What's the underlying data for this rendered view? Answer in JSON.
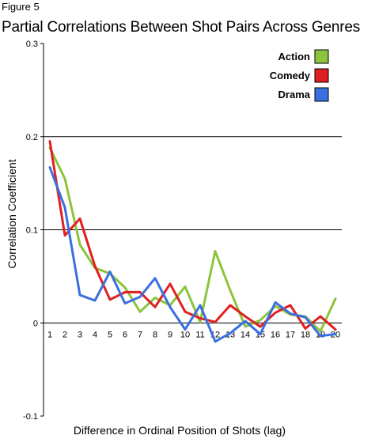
{
  "figure_label": "Figure 5",
  "chart_data": {
    "type": "line",
    "title": "Partial Correlations Between Shot Pairs Across Genres",
    "xlabel": "Difference in Ordinal Position of Shots (lag)",
    "ylabel": "Correlation Coefficient",
    "ylim": [
      -0.1,
      0.3
    ],
    "yticks": [
      "0.3",
      "0.2",
      "0.1",
      "0",
      "-0.1"
    ],
    "ytick_values": [
      0.3,
      0.2,
      0.1,
      0,
      -0.1
    ],
    "gridlines_y": [
      0.2,
      0.1
    ],
    "x": [
      1,
      2,
      3,
      4,
      5,
      6,
      7,
      8,
      9,
      10,
      11,
      12,
      13,
      14,
      15,
      16,
      17,
      18,
      19,
      20
    ],
    "legend_position": "top-right",
    "series": [
      {
        "name": "Action",
        "color": "#8cc43c",
        "values": [
          0.188,
          0.155,
          0.084,
          0.059,
          0.053,
          0.038,
          0.012,
          0.027,
          0.019,
          0.039,
          0.001,
          0.077,
          0.035,
          -0.004,
          0.003,
          0.018,
          0.009,
          0.007,
          -0.009,
          0.026
        ]
      },
      {
        "name": "Comedy",
        "color": "#e02020",
        "values": [
          0.195,
          0.094,
          0.112,
          0.061,
          0.025,
          0.033,
          0.033,
          0.017,
          0.042,
          0.012,
          0.005,
          0.001,
          0.019,
          0.007,
          -0.004,
          0.011,
          0.019,
          -0.006,
          0.007,
          -0.007
        ]
      },
      {
        "name": "Drama",
        "color": "#3a6fe0",
        "values": [
          0.167,
          0.124,
          0.03,
          0.024,
          0.055,
          0.021,
          0.028,
          0.048,
          0.017,
          -0.007,
          0.019,
          -0.02,
          -0.011,
          0.002,
          -0.012,
          0.022,
          0.01,
          0.006,
          -0.014,
          -0.012
        ]
      }
    ]
  }
}
